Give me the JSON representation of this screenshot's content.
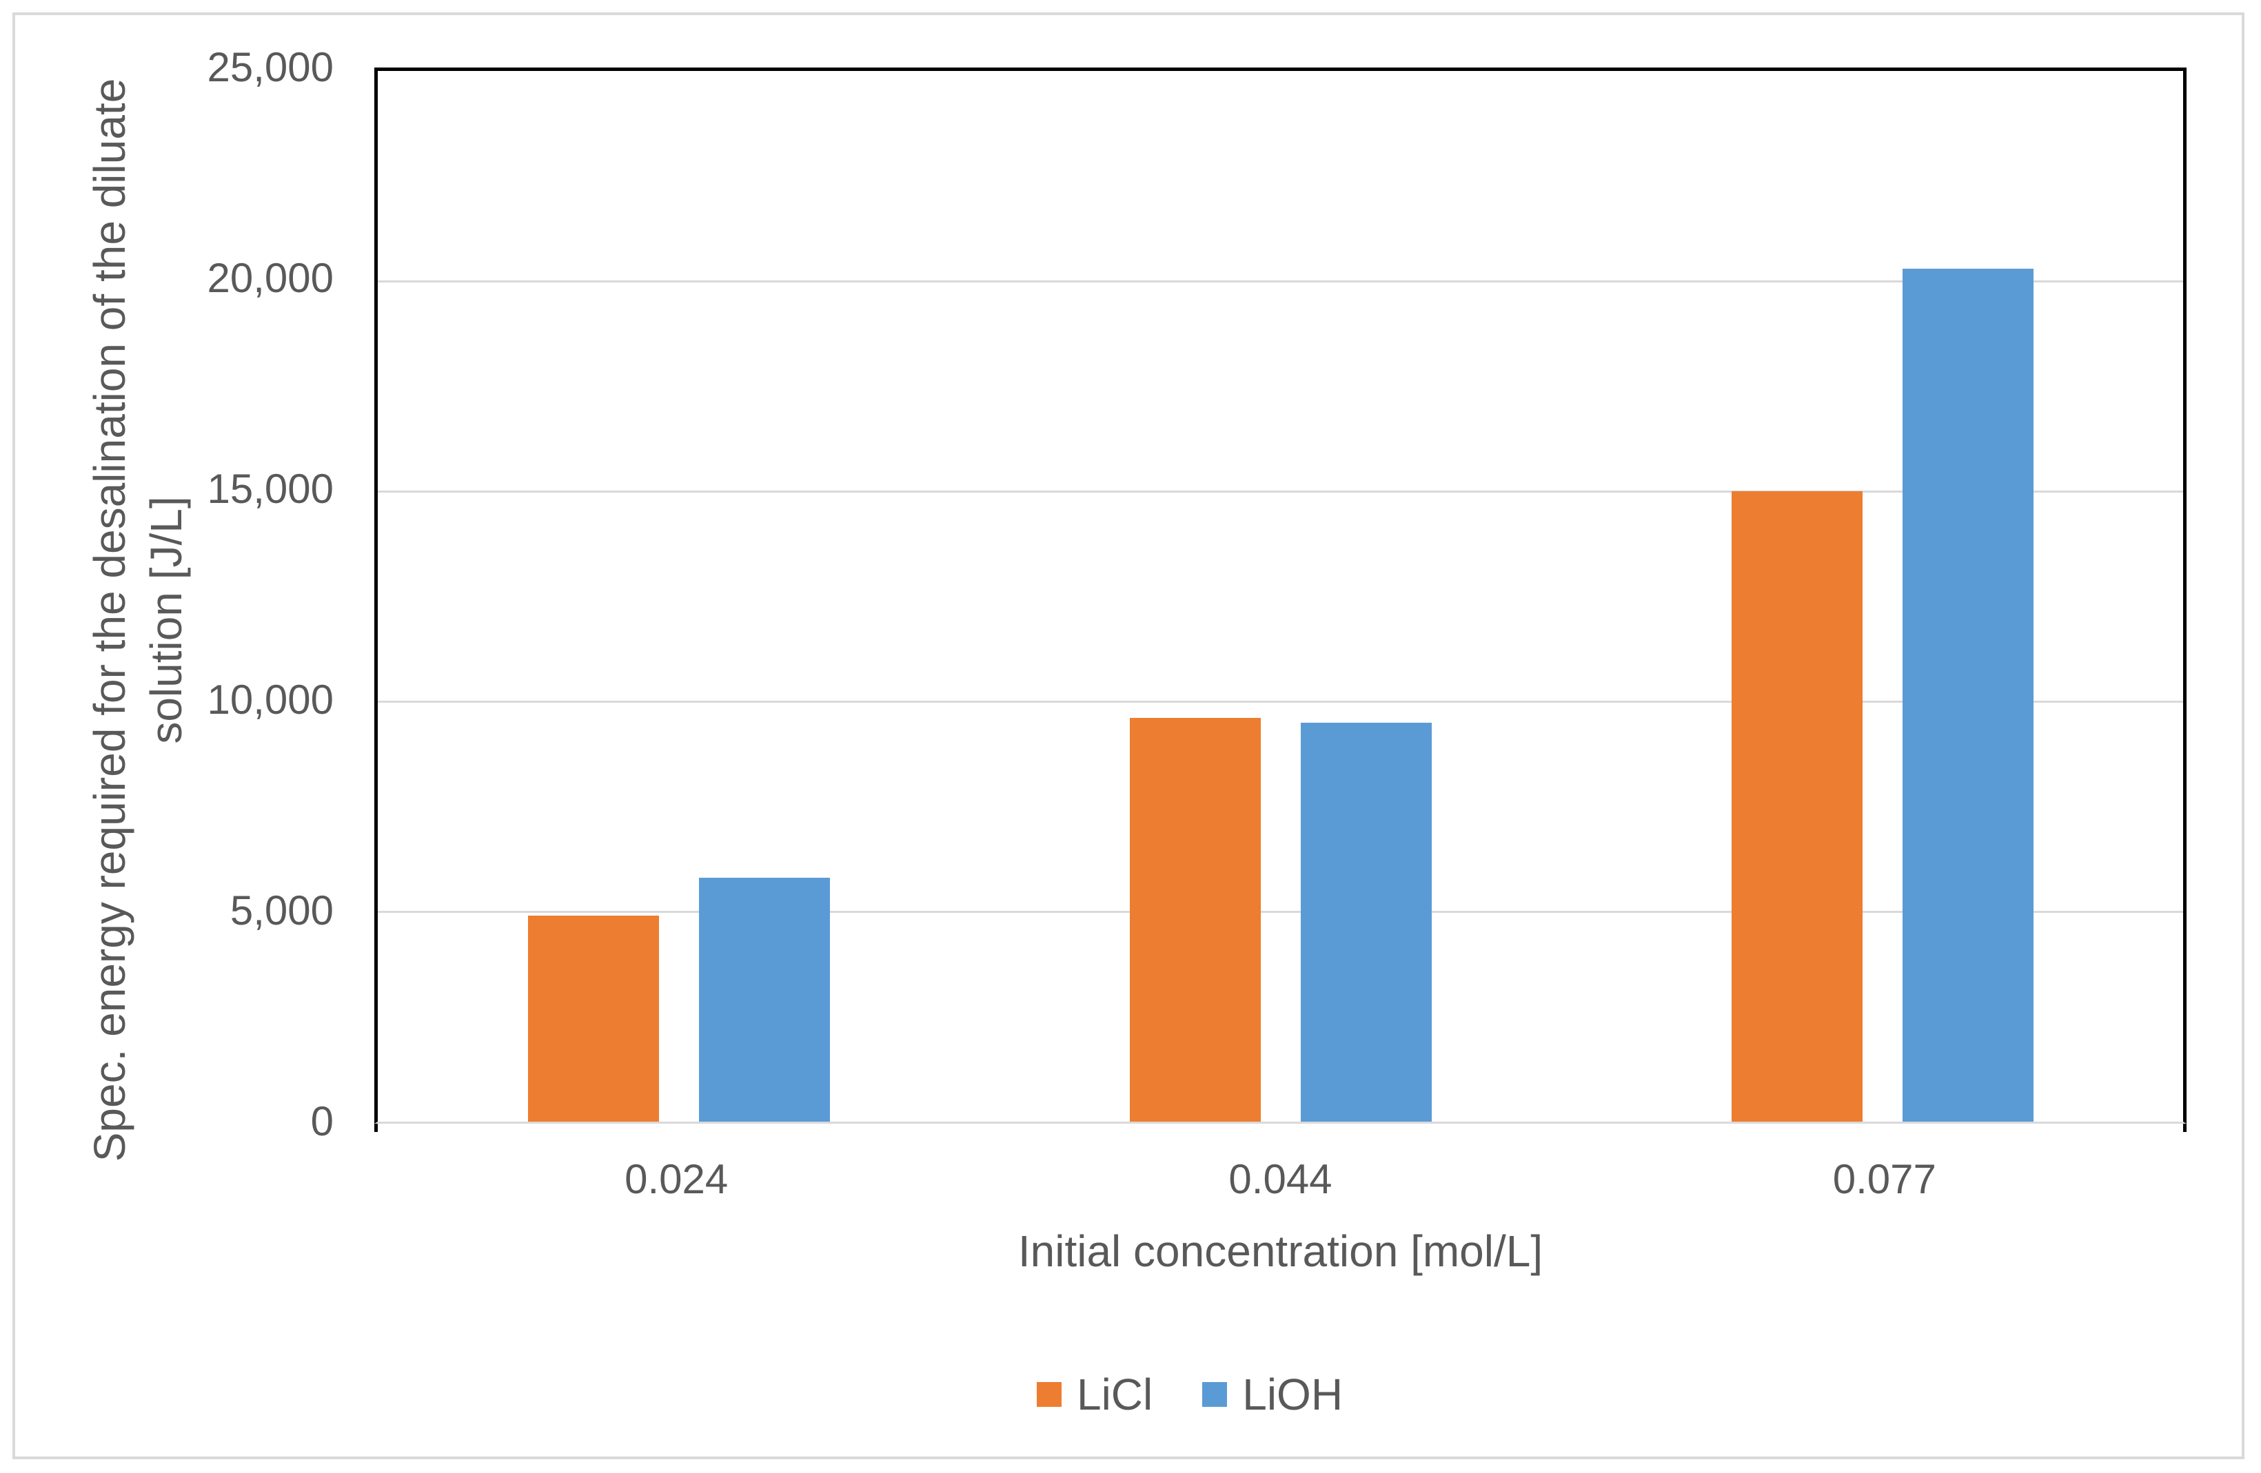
{
  "chart_data": {
    "type": "bar",
    "title": "",
    "categories": [
      "0.024",
      "0.044",
      "0.077"
    ],
    "series": [
      {
        "name": "LiCl",
        "color": "#ED7D31",
        "values": [
          4900,
          9600,
          15000
        ]
      },
      {
        "name": "LiOH",
        "color": "#5B9BD5",
        "values": [
          5800,
          9500,
          20300
        ]
      }
    ],
    "xlabel": "Initial concentration [mol/L]",
    "ylabel": "Spec. energy required for the desalination of the diluate solution [J/L]",
    "ylabel_lines": [
      "Spec. energy required for the desalination of the diluate",
      "solution [J/L]"
    ],
    "ylim": [
      0,
      25000
    ],
    "ytick_interval": 5000,
    "ytick_labels": [
      "25,000",
      "20,000",
      "15,000",
      "10,000",
      "5,000",
      "0"
    ],
    "grid": true,
    "legend_position": "bottom"
  },
  "colors": {
    "licl_bar": "#ED7D31",
    "lioh_bar": "#5B9BD5",
    "gridline": "#D9D9D9",
    "axis_frame": "#000000",
    "text": "#595959",
    "outer_border": "#D9D9D9",
    "background": "#FFFFFF"
  }
}
